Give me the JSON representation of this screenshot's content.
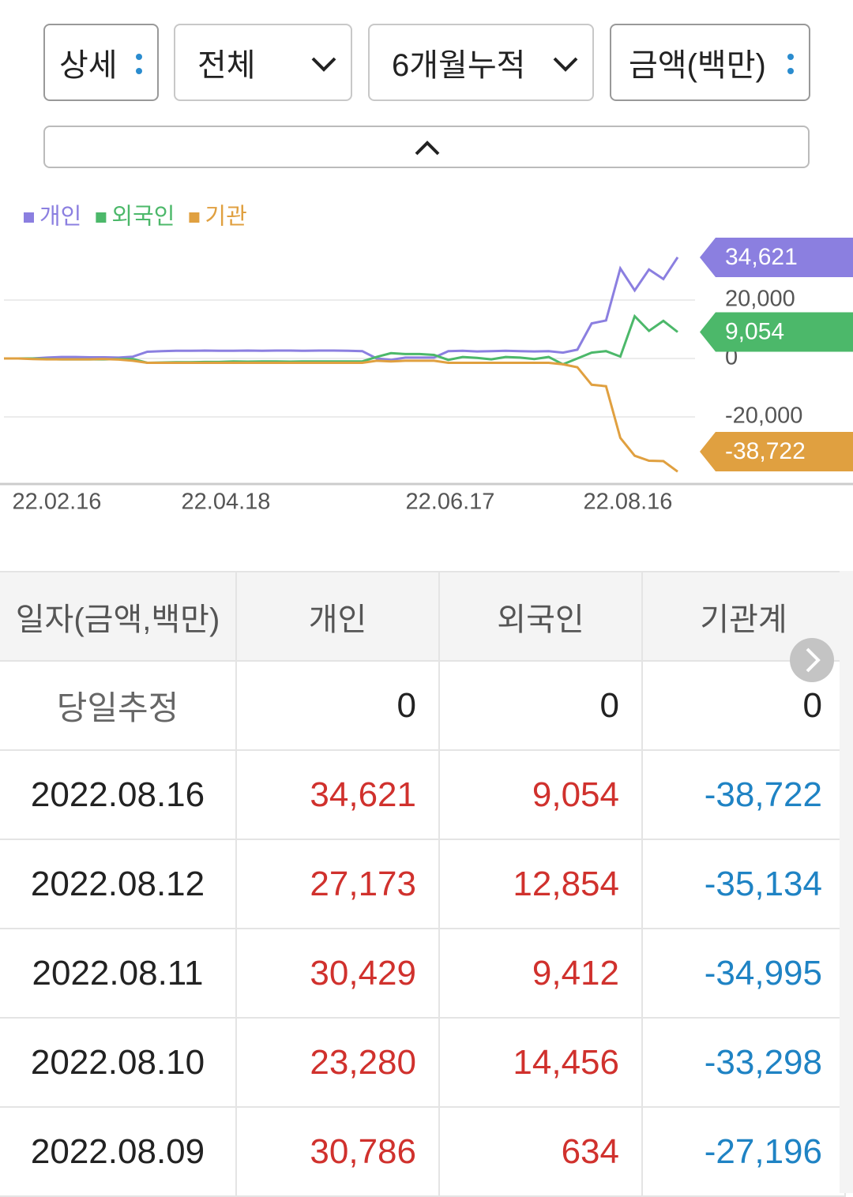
{
  "dropdowns": [
    "상세",
    "전체",
    "6개월누적",
    "금액(백만)"
  ],
  "chart_data": {
    "type": "line",
    "series": [
      {
        "name": "개인",
        "color": "#8b7fe0",
        "end_label": "34,621",
        "values": [
          0,
          0,
          0,
          300,
          500,
          500,
          400,
          400,
          300,
          600,
          2300,
          2500,
          2600,
          2600,
          2700,
          2600,
          2600,
          2700,
          2600,
          2700,
          2700,
          2600,
          2700,
          2700,
          2600,
          2500,
          0,
          -500,
          300,
          300,
          300,
          2500,
          2600,
          2400,
          2500,
          2600,
          2500,
          2400,
          2500,
          2000,
          3000,
          12000,
          13000,
          30786,
          23280,
          30429,
          27173,
          34621
        ]
      },
      {
        "name": "외국인",
        "color": "#4cb86a",
        "end_label": "9,054",
        "values": [
          0,
          0,
          0,
          -200,
          -300,
          -300,
          -300,
          -300,
          -200,
          -200,
          -1500,
          -1400,
          -1300,
          -1300,
          -1200,
          -1200,
          -1000,
          -1100,
          -1000,
          -1000,
          -1100,
          -1000,
          -1000,
          -1000,
          -1000,
          -1000,
          500,
          1800,
          1500,
          1500,
          1200,
          -500,
          500,
          200,
          -300,
          500,
          300,
          -200,
          500,
          -2000,
          0,
          2000,
          2500,
          634,
          14456,
          9412,
          12854,
          9054
        ]
      },
      {
        "name": "기관",
        "color": "#e0a040",
        "end_label": "-38,722",
        "values": [
          0,
          0,
          -200,
          -300,
          -300,
          -300,
          -300,
          -200,
          -400,
          -800,
          -1500,
          -1500,
          -1500,
          -1500,
          -1500,
          -1500,
          -1500,
          -1500,
          -1500,
          -1500,
          -1500,
          -1500,
          -1500,
          -1500,
          -1500,
          -1500,
          -800,
          -1000,
          -800,
          -800,
          -800,
          -1500,
          -1500,
          -1500,
          -1500,
          -1500,
          -1500,
          -1500,
          -1500,
          -2000,
          -3000,
          -9000,
          -9500,
          -27196,
          -33298,
          -34995,
          -35134,
          -38722
        ]
      }
    ],
    "ylim": [
      -42700,
      41600
    ],
    "yticks": [
      {
        "value": 20000,
        "label": "20,000"
      },
      0,
      {
        "value": -20000,
        "label": "-20,000"
      }
    ],
    "xticks": [
      "22.02.16",
      "22.04.18",
      "22.06.17",
      "22.08.16"
    ],
    "grid": true
  },
  "table": {
    "header": [
      "일자(금액,백만)",
      "개인",
      "외국인",
      "기관계"
    ],
    "rows": [
      [
        "당일추정",
        "0",
        "0",
        "0"
      ],
      [
        "2022.08.16",
        "34,621",
        "9,054",
        "-38,722"
      ],
      [
        "2022.08.12",
        "27,173",
        "12,854",
        "-35,134"
      ],
      [
        "2022.08.11",
        "30,429",
        "9,412",
        "-34,995"
      ],
      [
        "2022.08.10",
        "23,280",
        "14,456",
        "-33,298"
      ],
      [
        "2022.08.09",
        "30,786",
        "634",
        "-27,196"
      ]
    ]
  }
}
